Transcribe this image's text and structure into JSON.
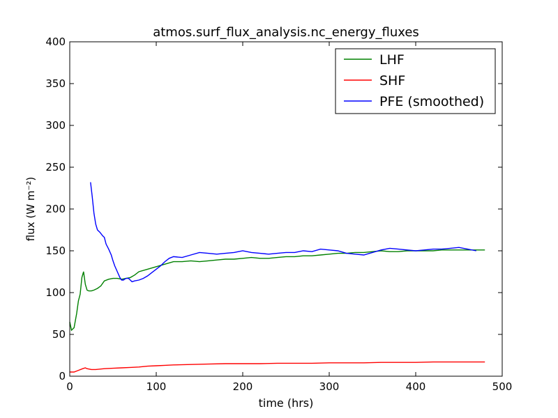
{
  "chart_data": {
    "type": "line",
    "title": "atmos.surf_flux_analysis.nc_energy_fluxes",
    "xlabel": "time (hrs)",
    "ylabel": "flux (W m⁻²)",
    "xlim": [
      0,
      500
    ],
    "ylim": [
      0,
      400
    ],
    "xticks": [
      0,
      100,
      200,
      300,
      400,
      500
    ],
    "yticks": [
      0,
      50,
      100,
      150,
      200,
      250,
      300,
      350,
      400
    ],
    "xtick_labels": [
      "0",
      "100",
      "200",
      "300",
      "400",
      "500"
    ],
    "ytick_labels": [
      "0",
      "50",
      "100",
      "150",
      "200",
      "250",
      "300",
      "350",
      "400"
    ],
    "grid": false,
    "legend_position": "top-right",
    "series": [
      {
        "name": "LHF",
        "color": "#008000",
        "x": [
          0,
          2,
          5,
          8,
          10,
          12,
          14,
          16,
          18,
          20,
          22,
          25,
          28,
          32,
          36,
          40,
          45,
          50,
          55,
          60,
          65,
          70,
          75,
          80,
          90,
          100,
          110,
          120,
          130,
          140,
          150,
          160,
          170,
          180,
          190,
          200,
          210,
          220,
          230,
          240,
          250,
          260,
          270,
          280,
          290,
          300,
          310,
          320,
          330,
          340,
          350,
          360,
          370,
          380,
          390,
          400,
          410,
          420,
          430,
          440,
          450,
          460,
          470,
          480
        ],
        "y": [
          65,
          55,
          58,
          75,
          90,
          98,
          118,
          125,
          110,
          103,
          102,
          102,
          103,
          105,
          108,
          114,
          116,
          117,
          117,
          116,
          117,
          118,
          121,
          125,
          128,
          131,
          134,
          137,
          137,
          138,
          137,
          138,
          139,
          140,
          140,
          141,
          142,
          141,
          141,
          142,
          143,
          143,
          144,
          144,
          145,
          146,
          147,
          147,
          148,
          148,
          149,
          150,
          149,
          149,
          150,
          150,
          150,
          150,
          151,
          151,
          151,
          151,
          151,
          151
        ]
      },
      {
        "name": "SHF",
        "color": "#ff0000",
        "x": [
          0,
          5,
          10,
          15,
          18,
          20,
          25,
          30,
          40,
          50,
          60,
          70,
          80,
          90,
          100,
          110,
          120,
          140,
          160,
          180,
          200,
          220,
          240,
          260,
          280,
          300,
          320,
          340,
          360,
          380,
          400,
          420,
          440,
          460,
          480
        ],
        "y": [
          5,
          5,
          7,
          9,
          10,
          9,
          8,
          8,
          9,
          9.5,
          10,
          10.5,
          11,
          12,
          12.5,
          13,
          13.5,
          14,
          14.5,
          15,
          15,
          15,
          15.5,
          15.5,
          15.5,
          16,
          16,
          16,
          16.5,
          16.5,
          16.5,
          17,
          17,
          17,
          17
        ]
      },
      {
        "name": "PFE (smoothed)",
        "color": "#0000ff",
        "x": [
          24,
          26,
          28,
          30,
          32,
          35,
          38,
          40,
          42,
          45,
          48,
          50,
          52,
          55,
          58,
          60,
          62,
          65,
          68,
          70,
          72,
          75,
          80,
          85,
          90,
          95,
          100,
          105,
          110,
          115,
          120,
          130,
          140,
          150,
          160,
          170,
          180,
          190,
          200,
          210,
          220,
          230,
          240,
          250,
          260,
          270,
          280,
          290,
          300,
          310,
          320,
          330,
          340,
          350,
          360,
          370,
          380,
          390,
          400,
          410,
          420,
          430,
          440,
          450,
          460,
          470
        ],
        "y": [
          232,
          215,
          195,
          182,
          175,
          172,
          168,
          166,
          158,
          152,
          145,
          138,
          132,
          125,
          118,
          115,
          115,
          117,
          117,
          115,
          113,
          114,
          115,
          117,
          120,
          124,
          128,
          132,
          137,
          141,
          143,
          142,
          145,
          148,
          147,
          146,
          147,
          148,
          150,
          148,
          147,
          146,
          147,
          148,
          148,
          150,
          149,
          152,
          151,
          150,
          147,
          146,
          145,
          148,
          151,
          153,
          152,
          151,
          150,
          151,
          152,
          152,
          153,
          154,
          152,
          150
        ]
      }
    ]
  }
}
